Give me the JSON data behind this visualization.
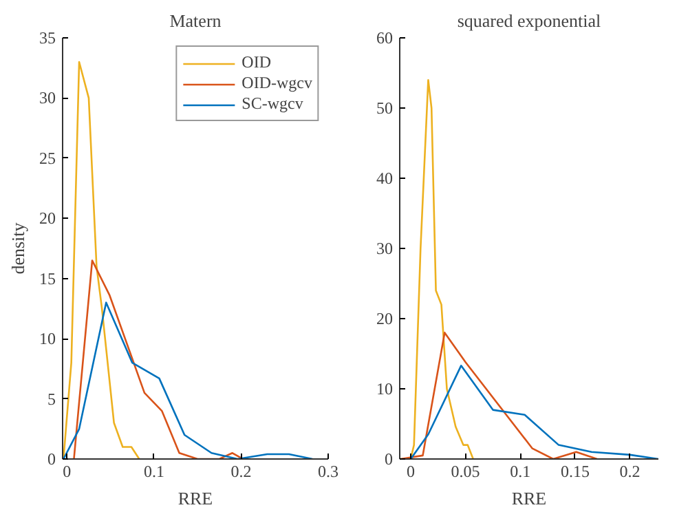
{
  "chart_data": [
    {
      "type": "line",
      "title": "Matern",
      "xlabel": "RRE",
      "ylabel": "density",
      "xlim": [
        -0.005,
        0.3
      ],
      "xticks": [
        0,
        0.1,
        0.2,
        0.3
      ],
      "ylim": [
        0,
        35
      ],
      "yticks": [
        0,
        5,
        10,
        15,
        20,
        25,
        30,
        35
      ],
      "grid": false,
      "legend": "top right",
      "series": [
        {
          "name": "OID",
          "color": "#edb120",
          "x": [
            -0.004,
            0.005,
            0.014,
            0.025,
            0.034,
            0.04,
            0.054,
            0.064,
            0.074,
            0.083
          ],
          "values": [
            0,
            8,
            33,
            30,
            16,
            12.6,
            3,
            1,
            1,
            0
          ]
        },
        {
          "name": "OID-wgcv",
          "color": "#d95319",
          "x": [
            0.008,
            0.029,
            0.049,
            0.089,
            0.109,
            0.129,
            0.15,
            0.175,
            0.19,
            0.202
          ],
          "values": [
            0,
            16.5,
            13.6,
            5.5,
            4,
            0.5,
            0,
            0,
            0.5,
            0
          ]
        },
        {
          "name": "SC-wgcv",
          "color": "#0072bd",
          "x": [
            -0.004,
            0.014,
            0.045,
            0.075,
            0.106,
            0.135,
            0.166,
            0.196,
            0.23,
            0.255,
            0.282
          ],
          "values": [
            0,
            2.5,
            13,
            8,
            6.7,
            2,
            0.5,
            0,
            0.4,
            0.4,
            0
          ]
        }
      ]
    },
    {
      "type": "line",
      "title": "squared exponential",
      "xlabel": "RRE",
      "xlim": [
        -0.01,
        0.226
      ],
      "xticks": [
        0,
        0.05,
        0.1,
        0.15,
        0.2
      ],
      "ylim": [
        0,
        60
      ],
      "yticks": [
        0,
        10,
        20,
        30,
        40,
        50,
        60
      ],
      "grid": false,
      "series": [
        {
          "color": "#edb120",
          "x": [
            -0.009,
            0,
            0.003,
            0.009,
            0.016,
            0.019,
            0.023,
            0.028,
            0.033,
            0.041,
            0.048,
            0.052,
            0.057
          ],
          "values": [
            0,
            0,
            2,
            30,
            54,
            50,
            24,
            22,
            10,
            4.6,
            2,
            2,
            0
          ]
        },
        {
          "color": "#d95319",
          "x": [
            -0.009,
            0.011,
            0.031,
            0.05,
            0.111,
            0.13,
            0.151,
            0.17
          ],
          "values": [
            0,
            0.5,
            18,
            13.8,
            1.5,
            0,
            1,
            0
          ]
        },
        {
          "color": "#0072bd",
          "x": [
            0,
            0.016,
            0.046,
            0.075,
            0.104,
            0.135,
            0.165,
            0.2,
            0.226
          ],
          "values": [
            0,
            3.5,
            13.3,
            7,
            6.3,
            2,
            1,
            0.6,
            0
          ]
        }
      ]
    }
  ]
}
